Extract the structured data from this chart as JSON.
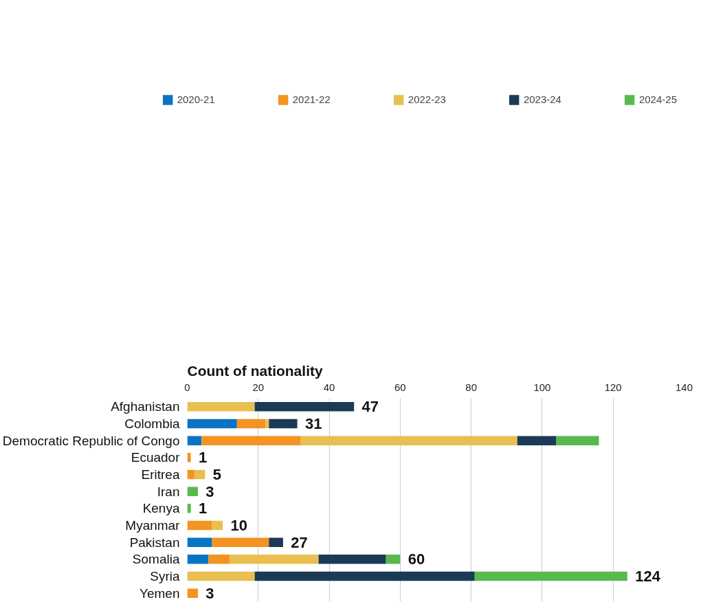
{
  "chart_data": {
    "type": "bar",
    "orientation": "horizontal",
    "stacked": true,
    "ylabel": "Count of nationality",
    "categories": [
      "Afghanistan",
      "Colombia",
      "Democratic Republic of Congo",
      "Ecuador",
      "Eritrea",
      "Iran",
      "Kenya",
      "Myanmar",
      "Pakistan",
      "Somalia",
      "Syria",
      "Yemen"
    ],
    "series": [
      {
        "name": "2020-21",
        "color": "#0a74c4",
        "values": [
          0,
          14,
          4,
          0,
          0,
          0,
          0,
          0,
          7,
          6,
          0,
          0
        ]
      },
      {
        "name": "2021-22",
        "color": "#f39322",
        "values": [
          0,
          8,
          28,
          1,
          2,
          0,
          0,
          7,
          16,
          6,
          0,
          3
        ]
      },
      {
        "name": "2022-23",
        "color": "#e8bf50",
        "values": [
          19,
          1,
          61,
          0,
          3,
          0,
          0,
          3,
          0,
          25,
          19,
          0
        ]
      },
      {
        "name": "2023-24",
        "color": "#1b3a57",
        "values": [
          28,
          8,
          11,
          0,
          0,
          0,
          0,
          0,
          4,
          19,
          62,
          0
        ]
      },
      {
        "name": "2024-25",
        "color": "#58ba4c",
        "values": [
          0,
          0,
          12,
          0,
          0,
          3,
          1,
          0,
          0,
          4,
          43,
          0
        ]
      }
    ],
    "totals": [
      "47",
      "31",
      null,
      "1",
      "5",
      "3",
      "1",
      "10",
      "27",
      "60",
      "124",
      "3"
    ],
    "xlim": [
      0,
      140
    ],
    "xticks": [
      0,
      20,
      40,
      60,
      80,
      100,
      120,
      140
    ],
    "grid": "x",
    "legend": "top"
  }
}
